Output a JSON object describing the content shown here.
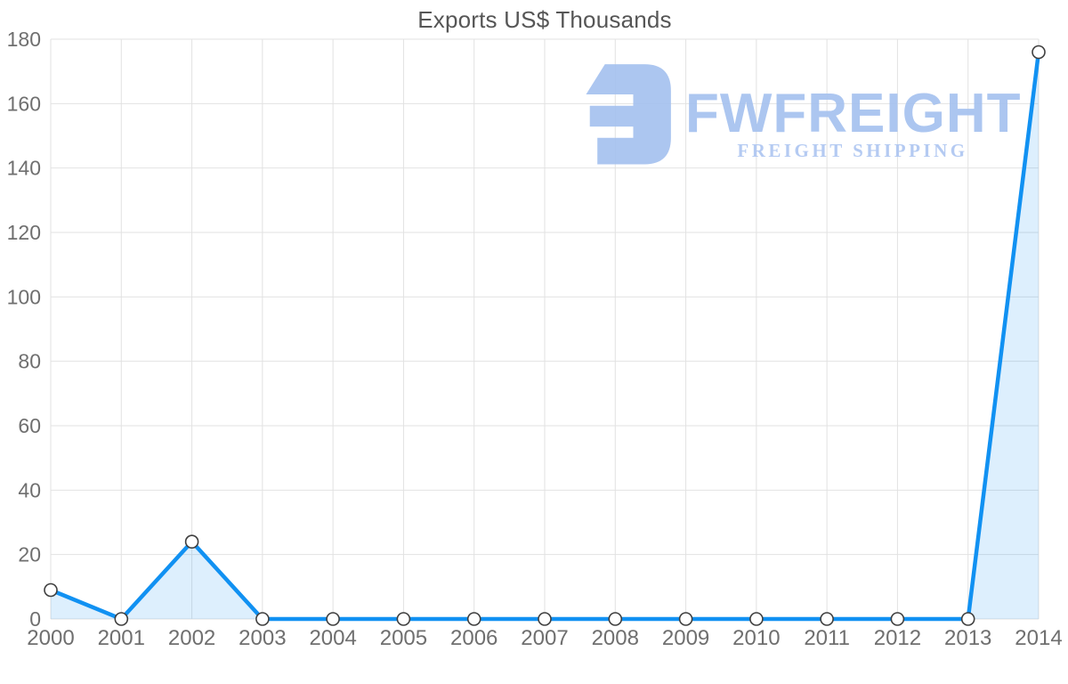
{
  "title": "Exports US$ Thousands",
  "watermark": {
    "brand": "FWFREIGHT",
    "tagline": "FREIGHT SHIPPING",
    "brand_color": "#a6c2ef",
    "tagline_color": "#aec6f1",
    "icon": "fwfreight-logo-mark"
  },
  "chart_data": {
    "type": "area",
    "title": "Exports US$ Thousands",
    "xlabel": "",
    "ylabel": "",
    "x_labels": [
      "2000",
      "2001",
      "2002",
      "2003",
      "2004",
      "2005",
      "2006",
      "2007",
      "2008",
      "2009",
      "2010",
      "2011",
      "2012",
      "2013",
      "2014"
    ],
    "values": [
      9,
      0,
      24,
      0,
      0,
      0,
      0,
      0,
      0,
      0,
      0,
      0,
      0,
      0,
      176
    ],
    "ylim": [
      0,
      180
    ],
    "yticks": [
      0,
      20,
      40,
      60,
      80,
      100,
      120,
      140,
      160,
      180
    ],
    "grid": true,
    "legend": "none",
    "line_color": "#1191f2",
    "line_width": 4.5,
    "area_fill_color": "#1191f2",
    "area_fill_opacity": 0.14,
    "marker_fill": "#ffffff",
    "marker_stroke": "#3f3f3f",
    "grid_color": "#e2e2e2",
    "tick_label_color": "#6f6f6f",
    "title_color": "#565656"
  }
}
